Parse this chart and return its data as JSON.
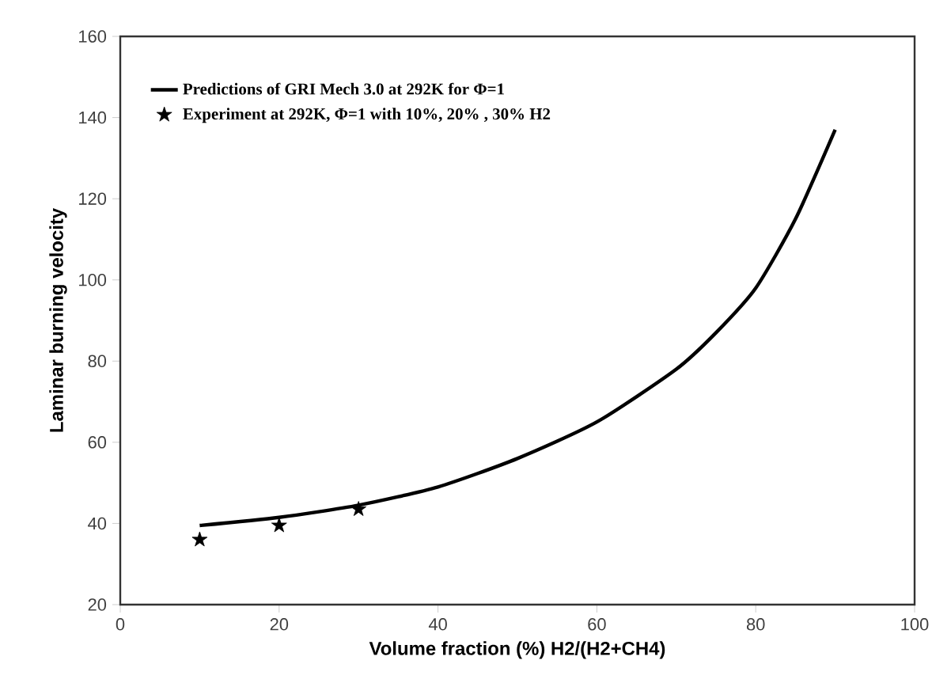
{
  "chart_data": {
    "type": "line",
    "xlabel": "Volume fraction (%) H2/(H2+CH4)",
    "ylabel": "Laminar burning velocity",
    "xlim": [
      0,
      100
    ],
    "ylim": [
      20,
      160
    ],
    "xticks": [
      0,
      20,
      40,
      60,
      80,
      100
    ],
    "yticks": [
      20,
      40,
      60,
      80,
      100,
      120,
      140,
      160
    ],
    "legend": "top left",
    "grid": false,
    "series": [
      {
        "name": "Predictions of GRI Mech 3.0 at 292K for Φ=1",
        "color": "#000000",
        "marker": "none",
        "line_style": "solid",
        "x": [
          10,
          20,
          30,
          40,
          50,
          60,
          70,
          75,
          80,
          85,
          90
        ],
        "values": [
          39.5,
          41.5,
          44.5,
          49,
          56,
          65,
          78,
          87,
          98,
          115,
          137
        ]
      },
      {
        "name": "Experiment at 292K, Φ=1 with 10%, 20% , 30% H2",
        "color": "#000000",
        "type": "scatter",
        "marker": "star",
        "x": [
          10,
          20,
          30
        ],
        "values": [
          36,
          39.5,
          43.5
        ]
      }
    ]
  }
}
